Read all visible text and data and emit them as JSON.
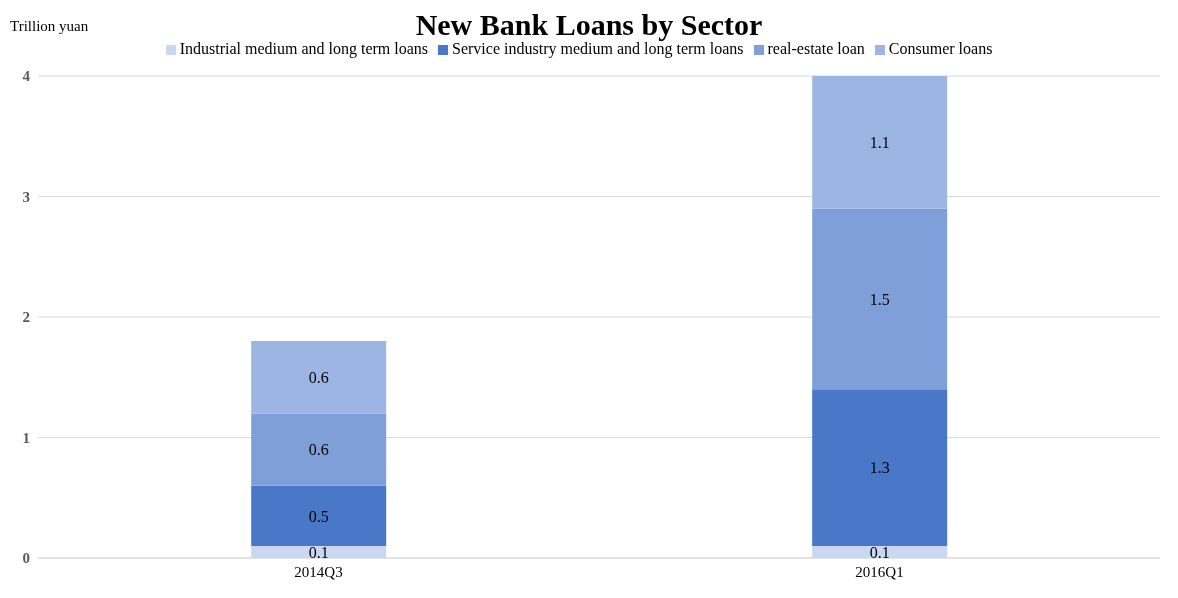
{
  "chart_data": {
    "type": "bar",
    "title": "New Bank Loans by Sector",
    "ylabel": "Trillion yuan",
    "categories": [
      "2014Q3",
      "2016Q1"
    ],
    "stacked": true,
    "series": [
      {
        "name": "Industrial medium and long term loans",
        "color": "#c9d7f0",
        "values": [
          0.1,
          0.1
        ]
      },
      {
        "name": "Service industry medium and long term loans",
        "color": "#4a78c8",
        "values": [
          0.5,
          1.3
        ]
      },
      {
        "name": "real-estate loan",
        "color": "#7f9fd8",
        "values": [
          0.6,
          1.5
        ]
      },
      {
        "name": "Consumer loans",
        "color": "#9db5e3",
        "values": [
          0.6,
          1.1
        ]
      }
    ],
    "ylim": [
      0,
      4
    ],
    "yticks": [
      0,
      1,
      2,
      3,
      4
    ],
    "grid": "y",
    "legend": "top",
    "data_labels": true
  }
}
